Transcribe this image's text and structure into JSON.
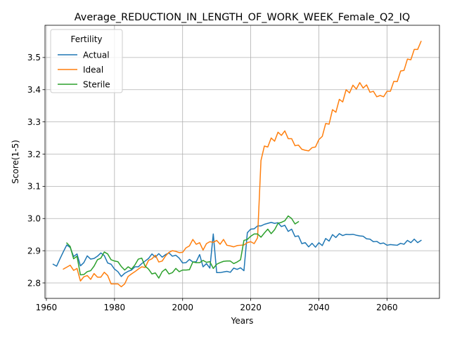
{
  "chart_data": {
    "type": "line",
    "title": "Average_REDUCTION_IN_LENGTH_OF_WORK_WEEK_Female_Q2_IQ",
    "xlabel": "Years",
    "ylabel": "Score(1-5)",
    "xlim": [
      1959.6,
      2075.4
    ],
    "ylim": [
      2.752,
      3.6
    ],
    "xticks": [
      1960,
      1980,
      2000,
      2020,
      2040,
      2060
    ],
    "yticks": [
      2.8,
      2.9,
      3.0,
      3.1,
      3.2,
      3.3,
      3.4,
      3.5
    ],
    "ytick_labels": [
      "2.8",
      "2.9",
      "3.0",
      "3.1",
      "3.2",
      "3.3",
      "3.4",
      "3.5"
    ],
    "grid": true,
    "legend": {
      "title": "Fertility",
      "placement": "top-left"
    },
    "series": [
      {
        "name": "Actual",
        "color": "#1f77b4",
        "x": [
          1962,
          1963,
          1964,
          1965,
          1966,
          1967,
          1968,
          1969,
          1970,
          1971,
          1972,
          1973,
          1974,
          1975,
          1976,
          1977,
          1978,
          1979,
          1980,
          1981,
          1982,
          1983,
          1984,
          1985,
          1986,
          1987,
          1988,
          1989,
          1990,
          1991,
          1992,
          1993,
          1994,
          1995,
          1996,
          1997,
          1998,
          1999,
          2000,
          2001,
          2002,
          2003,
          2004,
          2005,
          2006,
          2007,
          2008,
          2009,
          2010,
          2011,
          2012,
          2013,
          2014,
          2015,
          2016,
          2017,
          2018,
          2019,
          2020,
          2021,
          2022,
          2023,
          2024,
          2025,
          2026,
          2027,
          2028,
          2029,
          2030,
          2031,
          2032,
          2033,
          2034,
          2035,
          2036,
          2037,
          2038,
          2039,
          2040,
          2041,
          2042,
          2043,
          2044,
          2045,
          2046,
          2047,
          2048,
          2049,
          2050,
          2051,
          2052,
          2053,
          2054,
          2055,
          2056,
          2057,
          2058,
          2059,
          2060,
          2061,
          2062,
          2063,
          2064,
          2065,
          2066,
          2067,
          2068,
          2069,
          2070
        ],
        "values": [
          2.858,
          2.852,
          2.875,
          2.897,
          2.918,
          2.91,
          2.882,
          2.89,
          2.853,
          2.863,
          2.884,
          2.874,
          2.876,
          2.883,
          2.893,
          2.885,
          2.862,
          2.858,
          2.843,
          2.835,
          2.82,
          2.83,
          2.836,
          2.84,
          2.85,
          2.85,
          2.86,
          2.868,
          2.876,
          2.89,
          2.88,
          2.891,
          2.88,
          2.888,
          2.893,
          2.883,
          2.886,
          2.877,
          2.862,
          2.863,
          2.873,
          2.865,
          2.866,
          2.888,
          2.85,
          2.86,
          2.846,
          2.952,
          2.832,
          2.832,
          2.834,
          2.836,
          2.833,
          2.846,
          2.842,
          2.847,
          2.838,
          2.956,
          2.967,
          2.968,
          2.977,
          2.977,
          2.982,
          2.985,
          2.988,
          2.985,
          2.987,
          2.975,
          2.979,
          2.96,
          2.967,
          2.944,
          2.946,
          2.922,
          2.925,
          2.912,
          2.923,
          2.911,
          2.925,
          2.916,
          2.938,
          2.93,
          2.95,
          2.941,
          2.953,
          2.947,
          2.951,
          2.95,
          2.951,
          2.948,
          2.946,
          2.945,
          2.937,
          2.936,
          2.928,
          2.929,
          2.922,
          2.924,
          2.917,
          2.919,
          2.918,
          2.917,
          2.923,
          2.92,
          2.932,
          2.925,
          2.936,
          2.925,
          2.932
        ]
      },
      {
        "name": "Ideal",
        "color": "#ff7f0e",
        "x": [
          1965,
          1966,
          1967,
          1968,
          1969,
          1970,
          1971,
          1972,
          1973,
          1974,
          1975,
          1976,
          1977,
          1978,
          1979,
          1980,
          1981,
          1982,
          1983,
          1984,
          1985,
          1986,
          1987,
          1988,
          1989,
          1990,
          1991,
          1992,
          1993,
          1994,
          1995,
          1996,
          1997,
          1998,
          1999,
          2000,
          2001,
          2002,
          2003,
          2004,
          2005,
          2006,
          2007,
          2008,
          2009,
          2010,
          2011,
          2012,
          2013,
          2014,
          2015,
          2016,
          2017,
          2018,
          2019,
          2020,
          2021,
          2022,
          2023,
          2024,
          2025,
          2026,
          2027,
          2028,
          2029,
          2030,
          2031,
          2032,
          2033,
          2034,
          2035,
          2036,
          2037,
          2038,
          2039,
          2040,
          2041,
          2042,
          2043,
          2044,
          2045,
          2046,
          2047,
          2048,
          2049,
          2050,
          2051,
          2052,
          2053,
          2054,
          2055,
          2056,
          2057,
          2058,
          2059,
          2060,
          2061,
          2062,
          2063,
          2064,
          2065,
          2066,
          2067,
          2068,
          2069,
          2070
        ],
        "values": [
          2.843,
          2.849,
          2.855,
          2.839,
          2.845,
          2.806,
          2.819,
          2.823,
          2.811,
          2.829,
          2.818,
          2.818,
          2.833,
          2.823,
          2.797,
          2.797,
          2.797,
          2.788,
          2.797,
          2.82,
          2.828,
          2.835,
          2.843,
          2.85,
          2.848,
          2.87,
          2.875,
          2.886,
          2.865,
          2.868,
          2.884,
          2.895,
          2.9,
          2.898,
          2.894,
          2.895,
          2.909,
          2.915,
          2.935,
          2.92,
          2.925,
          2.902,
          2.922,
          2.928,
          2.926,
          2.932,
          2.92,
          2.935,
          2.917,
          2.915,
          2.912,
          2.916,
          2.917,
          2.918,
          2.925,
          2.928,
          2.922,
          2.94,
          3.18,
          3.225,
          3.222,
          3.25,
          3.24,
          3.268,
          3.258,
          3.272,
          3.248,
          3.248,
          3.226,
          3.228,
          3.215,
          3.212,
          3.21,
          3.22,
          3.222,
          3.245,
          3.255,
          3.295,
          3.293,
          3.338,
          3.33,
          3.37,
          3.362,
          3.4,
          3.39,
          3.414,
          3.402,
          3.422,
          3.405,
          3.415,
          3.392,
          3.395,
          3.378,
          3.382,
          3.378,
          3.395,
          3.395,
          3.426,
          3.425,
          3.458,
          3.46,
          3.495,
          3.493,
          3.525,
          3.525,
          3.55
        ]
      },
      {
        "name": "Sterile",
        "color": "#2ca02c",
        "x": [
          1966,
          1967,
          1968,
          1969,
          1970,
          1971,
          1972,
          1973,
          1974,
          1975,
          1976,
          1977,
          1978,
          1979,
          1980,
          1981,
          1982,
          1983,
          1984,
          1985,
          1986,
          1987,
          1988,
          1989,
          1990,
          1991,
          1992,
          1993,
          1994,
          1995,
          1996,
          1997,
          1998,
          1999,
          2000,
          2001,
          2002,
          2003,
          2004,
          2005,
          2006,
          2007,
          2008,
          2009,
          2010,
          2011,
          2012,
          2013,
          2014,
          2015,
          2016,
          2017,
          2018,
          2019,
          2020,
          2021,
          2022,
          2023,
          2024,
          2025,
          2026,
          2027,
          2028,
          2029,
          2030,
          2031,
          2032,
          2033,
          2034
        ],
        "values": [
          2.924,
          2.913,
          2.875,
          2.883,
          2.825,
          2.826,
          2.835,
          2.838,
          2.852,
          2.872,
          2.877,
          2.896,
          2.89,
          2.872,
          2.868,
          2.866,
          2.851,
          2.84,
          2.85,
          2.843,
          2.856,
          2.874,
          2.877,
          2.852,
          2.843,
          2.828,
          2.831,
          2.815,
          2.835,
          2.843,
          2.828,
          2.832,
          2.845,
          2.835,
          2.84,
          2.84,
          2.841,
          2.865,
          2.863,
          2.863,
          2.87,
          2.864,
          2.866,
          2.845,
          2.858,
          2.863,
          2.867,
          2.868,
          2.868,
          2.86,
          2.865,
          2.872,
          2.932,
          2.935,
          2.945,
          2.952,
          2.952,
          2.942,
          2.955,
          2.967,
          2.953,
          2.965,
          2.985,
          2.988,
          2.993,
          3.008,
          3.0,
          2.983,
          2.99
        ]
      }
    ]
  }
}
